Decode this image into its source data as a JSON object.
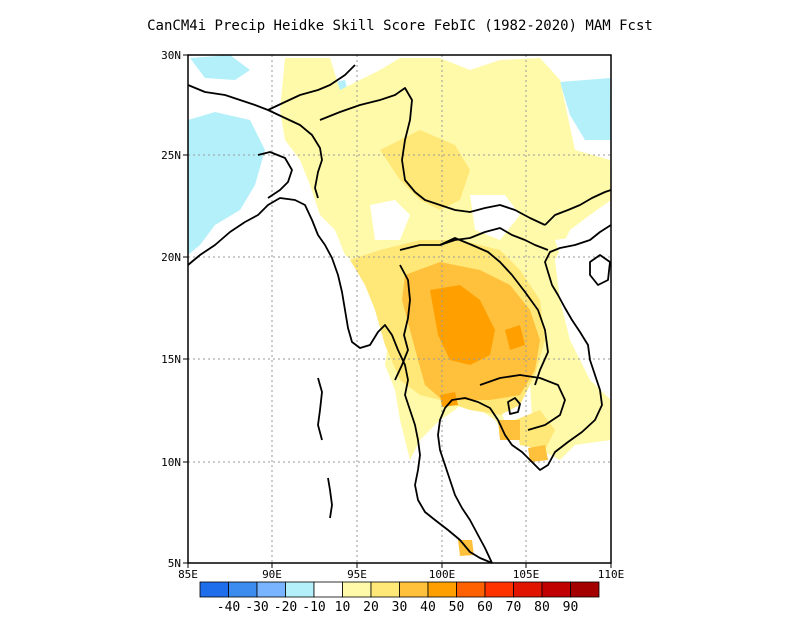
{
  "title": "CanCM4i Precip Heidke Skill Score FebIC (1982-2020) MAM Fcst",
  "map": {
    "lon_range": [
      85,
      110
    ],
    "lat_range": [
      5,
      30
    ],
    "lon_ticks": [
      "85E",
      "90E",
      "95E",
      "100E",
      "105E",
      "110E"
    ],
    "lat_ticks": [
      "5N",
      "10N",
      "15N",
      "20N",
      "25N",
      "30N"
    ],
    "grid": "dotted"
  },
  "colorbar": {
    "colors": [
      "#1e6eeb",
      "#3c8cf0",
      "#78b4ff",
      "#b4f0fa",
      "#ffffff",
      "#fffaaa",
      "#ffe878",
      "#ffc03c",
      "#ffa000",
      "#ff6000",
      "#ff3200",
      "#e11400",
      "#c00000",
      "#a50000"
    ],
    "labels": [
      "-40",
      "-30",
      "-20",
      "-10",
      "10",
      "20",
      "30",
      "40",
      "50",
      "60",
      "70",
      "80",
      "90"
    ]
  }
}
